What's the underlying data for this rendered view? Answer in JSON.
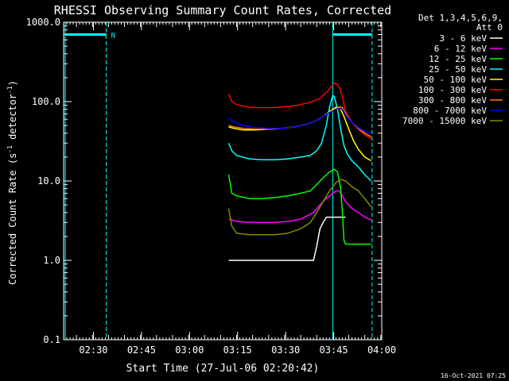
{
  "chart_data": {
    "type": "line",
    "title": "RHESSI Observing Summary Count Rates, Corrected",
    "xlabel": "Start Time (27-Jul-06 02:20:42)",
    "ylabel_main": "Corrected Count Rate (s",
    "ylabel_sup1": "-1",
    "ylabel_mid": " detector",
    "ylabel_sup2": "-1",
    "ylabel_end": ")",
    "yscale": "log",
    "ylim": [
      0.1,
      1000
    ],
    "xlim_minutes": [
      0,
      99.3
    ],
    "x_ticks": [
      {
        "label": "02:30",
        "t": 9.3
      },
      {
        "label": "02:45",
        "t": 24.3
      },
      {
        "label": "03:00",
        "t": 39.3
      },
      {
        "label": "03:15",
        "t": 54.3
      },
      {
        "label": "03:30",
        "t": 69.3
      },
      {
        "label": "03:45",
        "t": 84.3
      },
      {
        "label": "04:00",
        "t": 99.3
      }
    ],
    "y_ticks": [
      {
        "label": "1000.0",
        "v": 1000
      },
      {
        "label": "100.0",
        "v": 100
      },
      {
        "label": "10.0",
        "v": 10
      },
      {
        "label": "1.0",
        "v": 1
      },
      {
        "label": "0.1",
        "v": 0.1
      }
    ],
    "legend_header": [
      "Det 1,3,4,5,6,9,",
      "Att 0"
    ],
    "legend_position": "top-right",
    "series": [
      {
        "name": "3 - 6 keV",
        "color": "#ffffff",
        "x": [
          51.5,
          53,
          55,
          58,
          62,
          66,
          70,
          74,
          78,
          79,
          80,
          81,
          82,
          83,
          84,
          85,
          86,
          87,
          88
        ],
        "y": [
          1,
          1,
          1,
          1,
          1,
          1,
          1,
          1,
          1,
          1.5,
          2.5,
          3,
          3.5,
          3.5,
          3.5,
          3.5,
          3.5,
          3.5,
          3.5
        ]
      },
      {
        "name": "6 - 12 keV",
        "color": "#ff00ff",
        "x": [
          51.5,
          54,
          58,
          62,
          66,
          70,
          74,
          78,
          80,
          82,
          84,
          85,
          86,
          86.5,
          87,
          88,
          90,
          92,
          94,
          96
        ],
        "y": [
          3.3,
          3.1,
          3,
          3,
          3,
          3.1,
          3.3,
          4,
          5,
          6,
          7,
          7.5,
          7.5,
          7,
          6.5,
          5.5,
          4.5,
          4,
          3.5,
          3.2
        ]
      },
      {
        "name": "12 - 25 keV",
        "color": "#00ff00",
        "x": [
          51.5,
          52.5,
          54,
          58,
          62,
          66,
          70,
          74,
          77,
          79,
          81,
          83,
          84.5,
          85.5,
          86.5,
          87,
          87.5,
          88,
          90,
          92,
          94,
          96
        ],
        "y": [
          12,
          7,
          6.5,
          6,
          6,
          6.2,
          6.5,
          7,
          7.5,
          9,
          11,
          13,
          14,
          13,
          8,
          4,
          1.8,
          1.6,
          1.6,
          1.6,
          1.6,
          1.6
        ]
      },
      {
        "name": "25 - 50 keV",
        "color": "#00ffff",
        "x": [
          51.5,
          52.5,
          54,
          58,
          62,
          66,
          70,
          74,
          77,
          79,
          80.5,
          82,
          83,
          84,
          84.5,
          85.5,
          86.5,
          87.5,
          88.5,
          90,
          92,
          94,
          96
        ],
        "y": [
          30,
          24,
          21,
          19,
          18.5,
          18.5,
          19,
          20,
          21,
          24,
          30,
          50,
          85,
          120,
          115,
          80,
          45,
          28,
          22,
          18,
          15,
          12,
          10
        ]
      },
      {
        "name": "50 - 100 keV",
        "color": "#ffff00",
        "x": [
          51.5,
          53,
          56,
          60,
          64,
          68,
          72,
          76,
          79,
          81,
          83,
          85,
          86.5,
          87.5,
          89,
          90.5,
          92,
          94,
          96
        ],
        "y": [
          48,
          46,
          44,
          44,
          45,
          46,
          48,
          52,
          58,
          65,
          75,
          85,
          80,
          65,
          45,
          32,
          25,
          20,
          18
        ]
      },
      {
        "name": "100 - 300 keV",
        "color": "#ff0000",
        "x": [
          51.5,
          52.5,
          54,
          57,
          61,
          65,
          69,
          73,
          77,
          80,
          82,
          83.5,
          84.5,
          85.5,
          86.5,
          88,
          90,
          92,
          94,
          96
        ],
        "y": [
          125,
          100,
          92,
          86,
          84,
          84,
          86,
          90,
          98,
          110,
          130,
          155,
          170,
          165,
          140,
          75,
          55,
          45,
          38,
          34
        ]
      },
      {
        "name": "300 - 800 keV",
        "color": "#ff8800",
        "x": [
          51.5,
          53,
          56,
          60,
          64,
          68,
          72,
          76,
          79,
          81,
          83,
          85,
          86,
          87,
          88,
          90,
          92,
          94,
          96
        ],
        "y": [
          50,
          48,
          46,
          45,
          45,
          46,
          48,
          52,
          58,
          65,
          73,
          82,
          86,
          84,
          70,
          55,
          46,
          40,
          36
        ]
      },
      {
        "name": "800 - 7000 keV",
        "color": "#0000ff",
        "x": [
          51.5,
          53,
          56,
          60,
          64,
          68,
          72,
          76,
          79,
          81,
          83,
          85,
          86,
          87,
          88,
          90,
          92,
          94,
          96
        ],
        "y": [
          62,
          56,
          50,
          47,
          46,
          46,
          48,
          52,
          58,
          65,
          73,
          80,
          82,
          80,
          68,
          55,
          47,
          42,
          40
        ]
      },
      {
        "name": "7000 - 15000 keV",
        "color": "#888800",
        "x": [
          51.5,
          52.5,
          54,
          58,
          62,
          66,
          70,
          74,
          77,
          79,
          81,
          83,
          85,
          86.5,
          88,
          90,
          92,
          94,
          96
        ],
        "y": [
          4.5,
          2.7,
          2.2,
          2.1,
          2.1,
          2.1,
          2.2,
          2.5,
          3,
          4,
          5.5,
          7.5,
          9.5,
          10.5,
          10,
          8.5,
          7.5,
          6,
          4.7
        ]
      }
    ],
    "vertical_lines": [
      {
        "t": 0.5,
        "color": "#00ffff",
        "style": "solid"
      },
      {
        "t": 13.3,
        "color": "#00ffff",
        "style": "dashed"
      },
      {
        "t": 84.0,
        "color": "#00ffff",
        "style": "solid"
      },
      {
        "t": 96.3,
        "color": "#00ffff",
        "style": "dashed"
      }
    ],
    "markers": [
      {
        "t0": 0.5,
        "t1": 13.3,
        "v": 700,
        "color": "#00ffff",
        "label": "N"
      },
      {
        "t0": 84.0,
        "t1": 96.3,
        "v": 700,
        "color": "#00ffff",
        "label": ""
      }
    ]
  },
  "footer_timestamp": "16-Oct-2021 07:25"
}
